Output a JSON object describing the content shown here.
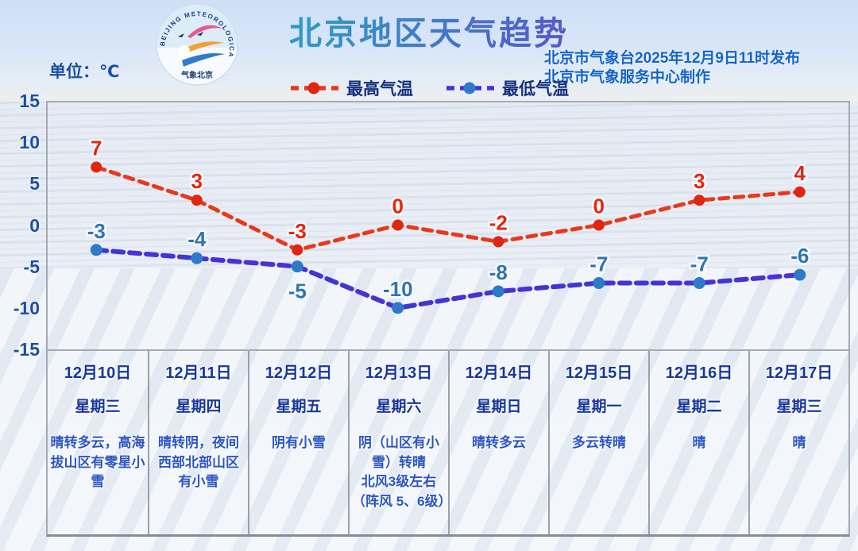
{
  "header": {
    "title": "北京地区天气趋势",
    "unit_label": "单位：℃",
    "publisher_line1": "北京市气象台2025年12月9日11时发布",
    "publisher_line2": "北京市气象服务中心制作",
    "logo": {
      "ring_text": "BEIJING METEOROLOGICAL SERVICE",
      "bottom_text": "气象北京"
    }
  },
  "legend": [
    {
      "label": "最高气温",
      "line_color": "#e8391a",
      "marker_color": "#e02510"
    },
    {
      "label": "最低气温",
      "line_color": "#4334d8",
      "marker_color": "#2d7bc8"
    }
  ],
  "chart_data": {
    "type": "line",
    "categories": [
      "12月10日",
      "12月11日",
      "12月12日",
      "12月13日",
      "12月14日",
      "12月15日",
      "12月16日",
      "12月17日"
    ],
    "series": [
      {
        "name": "最高气温",
        "values": [
          7,
          3,
          -3,
          0,
          -2,
          0,
          3,
          4
        ],
        "color": "#e8391a",
        "marker_color": "#e02510",
        "label_color": "#e8250d",
        "label_positions": [
          "above",
          "above",
          "above",
          "above",
          "above",
          "above",
          "above",
          "above"
        ]
      },
      {
        "name": "最低气温",
        "values": [
          -3,
          -4,
          -5,
          -10,
          -8,
          -7,
          -7,
          -6
        ],
        "color": "#4334d8",
        "marker_color": "#2d7bc8",
        "label_color": "#2e74b5",
        "label_positions": [
          "above",
          "above",
          "below",
          "above",
          "above",
          "above",
          "above",
          "above"
        ]
      }
    ],
    "ylim": [
      -15,
      15
    ],
    "y_ticks": [
      15,
      10,
      5,
      0,
      -5,
      -10,
      -15
    ],
    "grid": false,
    "legend_position": "top",
    "line_style": "dashed"
  },
  "table": {
    "columns": [
      {
        "date": "12月10日",
        "weekday": "星期三",
        "weather": "晴转多云，高海拔山区有零星小雪"
      },
      {
        "date": "12月11日",
        "weekday": "星期四",
        "weather": "晴转阴，夜间西部北部山区有小雪"
      },
      {
        "date": "12月12日",
        "weekday": "星期五",
        "weather": "阴有小雪"
      },
      {
        "date": "12月13日",
        "weekday": "星期六",
        "weather": "阴（山区有小雪）转晴\n北风3级左右（阵风 5、6级）"
      },
      {
        "date": "12月14日",
        "weekday": "星期日",
        "weather": "晴转多云"
      },
      {
        "date": "12月15日",
        "weekday": "星期一",
        "weather": "多云转晴"
      },
      {
        "date": "12月16日",
        "weekday": "星期二",
        "weather": "晴"
      },
      {
        "date": "12月17日",
        "weekday": "星期三",
        "weather": "晴"
      }
    ]
  },
  "colors": {
    "max_temp": "#e8391a",
    "min_temp_line": "#4334d8",
    "min_temp_marker": "#2d7bc8",
    "min_temp_label": "#2e74b5",
    "axis_text": "#1b4fa4",
    "table_text": "#17379c",
    "weather_text": "#2b55c4",
    "publisher_text": "#1464cc",
    "border_gray": "#a5abb4"
  }
}
